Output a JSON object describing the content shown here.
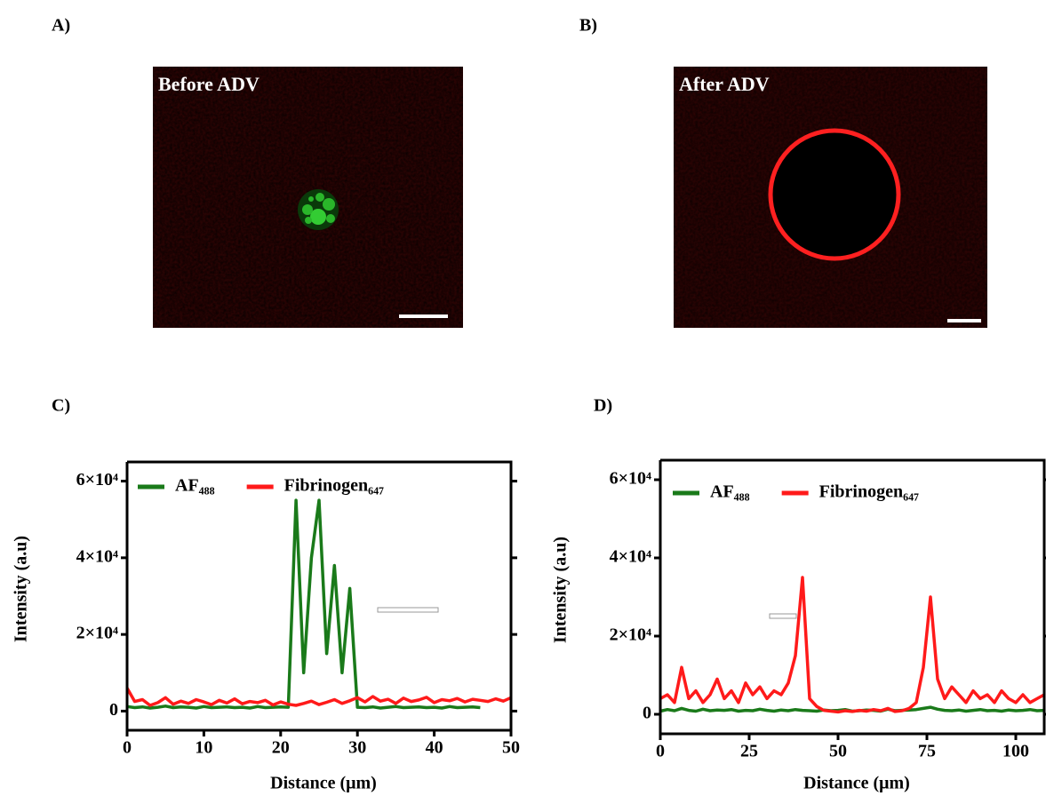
{
  "panels": [
    {
      "label": "A)",
      "caption": "Before ADV"
    },
    {
      "label": "B)",
      "caption": "After ADV"
    }
  ],
  "chart_data": [
    {
      "type": "line",
      "panel_label": "C)",
      "xlabel": "Distance (μm)",
      "ylabel": "Intensity (a.u)",
      "xlim": [
        0,
        50
      ],
      "xticks": [
        0,
        10,
        20,
        30,
        40,
        50
      ],
      "ylim": [
        -5000,
        65000
      ],
      "yticks": [
        0,
        {
          "value": 20000,
          "label": "2×10⁴"
        },
        {
          "value": 40000,
          "label": "4×10⁴"
        },
        {
          "value": 60000,
          "label": "6×10⁴"
        }
      ],
      "series": [
        {
          "name": "AF₄₈₈",
          "color": "#1a7a1a",
          "x": [
            0,
            1,
            2,
            3,
            4,
            5,
            6,
            7,
            8,
            9,
            10,
            11,
            12,
            13,
            14,
            15,
            16,
            17,
            18,
            19,
            20,
            21,
            22,
            23,
            24,
            25,
            26,
            27,
            28,
            29,
            30,
            31,
            32,
            33,
            34,
            35,
            36,
            37,
            38,
            39,
            40,
            41,
            42,
            43,
            44,
            45,
            46
          ],
          "values": [
            1200,
            900,
            1100,
            800,
            1000,
            1300,
            900,
            1100,
            1000,
            800,
            1200,
            900,
            1000,
            1100,
            900,
            1000,
            800,
            1200,
            900,
            1000,
            1100,
            1000,
            55000,
            10000,
            40000,
            55000,
            15000,
            38000,
            10000,
            32000,
            1000,
            900,
            1100,
            800,
            1000,
            1200,
            900,
            1000,
            1100,
            900,
            1000,
            800,
            1200,
            900,
            1000,
            1100,
            900
          ]
        },
        {
          "name": "Fibrinogen₆₄₇",
          "color": "#ff1a1a",
          "x": [
            0,
            1,
            2,
            3,
            4,
            5,
            6,
            7,
            8,
            9,
            10,
            11,
            12,
            13,
            14,
            15,
            16,
            17,
            18,
            19,
            20,
            21,
            22,
            23,
            24,
            25,
            26,
            27,
            28,
            29,
            30,
            31,
            32,
            33,
            34,
            35,
            36,
            37,
            38,
            39,
            40,
            41,
            42,
            43,
            44,
            45,
            46,
            47,
            48,
            49,
            50
          ],
          "values": [
            6000,
            2500,
            3000,
            1500,
            2200,
            3500,
            1800,
            2600,
            2000,
            3000,
            2400,
            1700,
            2800,
            2100,
            3200,
            1900,
            2500,
            2200,
            2800,
            1600,
            2400,
            1800,
            1500,
            2000,
            2600,
            1700,
            2300,
            3000,
            2000,
            2700,
            3500,
            2400,
            3800,
            2600,
            3100,
            2000,
            3400,
            2500,
            2900,
            3600,
            2200,
            3000,
            2700,
            3300,
            2400,
            3100,
            2800,
            2500,
            3200,
            2600,
            3500
          ]
        }
      ]
    },
    {
      "type": "line",
      "panel_label": "D)",
      "xlabel": "Distance (μm)",
      "ylabel": "Intensity (a.u)",
      "xlim": [
        0,
        108
      ],
      "xticks": [
        0,
        25,
        50,
        75,
        100
      ],
      "ylim": [
        -5000,
        65000
      ],
      "yticks": [
        0,
        {
          "value": 20000,
          "label": "2×10⁴"
        },
        {
          "value": 40000,
          "label": "4×10⁴"
        },
        {
          "value": 60000,
          "label": "6×10⁴"
        }
      ],
      "series": [
        {
          "name": "AF₄₈₈",
          "color": "#1a7a1a",
          "x": [
            0,
            2,
            4,
            6,
            8,
            10,
            12,
            14,
            16,
            18,
            20,
            22,
            24,
            26,
            28,
            30,
            32,
            34,
            36,
            38,
            40,
            42,
            44,
            46,
            48,
            50,
            52,
            54,
            56,
            58,
            60,
            62,
            64,
            66,
            68,
            70,
            72,
            74,
            76,
            78,
            80,
            82,
            84,
            86,
            88,
            90,
            92,
            94,
            96,
            98,
            100,
            102,
            104,
            106,
            108
          ],
          "values": [
            800,
            1200,
            900,
            1500,
            1000,
            800,
            1300,
            900,
            1100,
            1000,
            1200,
            800,
            1000,
            900,
            1300,
            1000,
            800,
            1100,
            900,
            1200,
            1000,
            900,
            800,
            1100,
            900,
            1000,
            1200,
            800,
            900,
            1100,
            1000,
            800,
            1300,
            900,
            1000,
            1100,
            1200,
            1500,
            1800,
            1300,
            1000,
            900,
            1100,
            800,
            1000,
            1200,
            900,
            1000,
            800,
            1100,
            900,
            1000,
            1200,
            900,
            1000
          ]
        },
        {
          "name": "Fibrinogen₆₄₇",
          "color": "#ff1a1a",
          "x": [
            0,
            2,
            4,
            6,
            8,
            10,
            12,
            14,
            16,
            18,
            20,
            22,
            24,
            26,
            28,
            30,
            32,
            34,
            36,
            38,
            40,
            42,
            44,
            46,
            48,
            50,
            52,
            54,
            56,
            58,
            60,
            62,
            64,
            66,
            68,
            70,
            72,
            74,
            76,
            78,
            80,
            82,
            84,
            86,
            88,
            90,
            92,
            94,
            96,
            98,
            100,
            102,
            104,
            106,
            108
          ],
          "values": [
            4000,
            5000,
            3000,
            12000,
            4000,
            6000,
            3000,
            5000,
            9000,
            4000,
            6000,
            3000,
            8000,
            5000,
            7000,
            4000,
            6000,
            5000,
            8000,
            15000,
            35000,
            4000,
            2000,
            1000,
            800,
            600,
            900,
            700,
            1000,
            800,
            1200,
            900,
            1500,
            700,
            900,
            1500,
            3000,
            12000,
            30000,
            9000,
            4000,
            7000,
            5000,
            3000,
            6000,
            4000,
            5000,
            3000,
            6000,
            4000,
            3000,
            5000,
            3000,
            4000,
            5000
          ]
        }
      ]
    }
  ]
}
